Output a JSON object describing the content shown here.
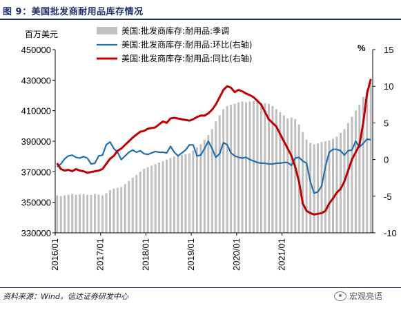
{
  "figure": {
    "title": "图 9：美国批发商耐用品库存情况",
    "source": "资料来源：Wind，信达证券研发中心",
    "watermark": "宏观亮语"
  },
  "chart_data": {
    "type": "bar+line",
    "left_unit": "百万美元",
    "right_unit": "%",
    "left_ylim": [
      330000,
      450000
    ],
    "left_ticks": [
      330000,
      350000,
      370000,
      390000,
      410000,
      430000,
      450000
    ],
    "right_ylim": [
      -10,
      15
    ],
    "right_ticks": [
      -10,
      -5,
      0,
      5,
      10,
      15
    ],
    "x_ticks": [
      "2016/01",
      "2017/01",
      "2018/01",
      "2019/01",
      "2020/01",
      "2021/01"
    ],
    "legend": [
      {
        "name": "美国:批发商库存:耐用品:季调",
        "color": "#bfbfbf",
        "kind": "bar"
      },
      {
        "name": "美国:批发商库存:耐用品:环比(右轴)",
        "color": "#1f6fb0",
        "kind": "line"
      },
      {
        "name": "美国:批发商库存:耐用品:同比(右轴)",
        "color": "#c00000",
        "kind": "line"
      }
    ],
    "series": [
      {
        "name": "美国:批发商库存:耐用品:季调",
        "axis": "left",
        "values": [
          354500,
          354000,
          354500,
          355000,
          355500,
          355000,
          355200,
          355500,
          355000,
          354800,
          355500,
          355000,
          354500,
          356000,
          358000,
          359000,
          359500,
          360000,
          362000,
          364000,
          366000,
          368000,
          370000,
          372000,
          373000,
          374000,
          375000,
          376000,
          377000,
          378000,
          379000,
          380000,
          380500,
          381000,
          381500,
          382000,
          384000,
          386000,
          388000,
          391000,
          394000,
          398000,
          403000,
          407000,
          411000,
          413000,
          414000,
          414500,
          415500,
          416000,
          415500,
          416000,
          416500,
          416000,
          415000,
          415000,
          414500,
          413000,
          411000,
          409000,
          407000,
          405000,
          405500,
          404500,
          401000,
          396000,
          391000,
          389000,
          388000,
          388500,
          389500,
          390000,
          390500,
          391500,
          393000,
          395500,
          398000,
          402000,
          406000,
          410000,
          414000,
          419000,
          424000,
          428000
        ]
      },
      {
        "name": "美国:批发商库存:耐用品:环比(右轴)",
        "axis": "right",
        "values": [
          -1.0,
          -0.6,
          0.1,
          0.5,
          0.6,
          0.3,
          0.2,
          0.4,
          0.2,
          -0.6,
          -0.5,
          0.5,
          0.6,
          2.0,
          2.4,
          1.5,
          1.0,
          0.0,
          0.5,
          1.0,
          1.3,
          1.0,
          1.2,
          0.8,
          0.7,
          0.9,
          1.1,
          1.0,
          1.0,
          0.9,
          1.8,
          1.0,
          0.5,
          0.9,
          1.3,
          2.0,
          2.0,
          0.5,
          0.6,
          1.5,
          2.5,
          1.5,
          0.3,
          0.8,
          2.3,
          2.0,
          0.9,
          0.5,
          0.3,
          0.2,
          0.3,
          0.0,
          -0.2,
          -0.4,
          -0.5,
          -0.5,
          -0.6,
          -0.6,
          -0.5,
          -0.5,
          -0.4,
          -0.4,
          -0.8,
          0.2,
          0.3,
          -0.2,
          -0.5,
          -3.0,
          -4.6,
          -4.4,
          -3.6,
          -1.0,
          1.0,
          1.4,
          1.4,
          1.2,
          0.6,
          1.2,
          1.3,
          2.5,
          1.7,
          2.2,
          2.8,
          2.7
        ]
      },
      {
        "name": "美国:批发商库存:耐用品:同比(右轴)",
        "axis": "right",
        "values": [
          -0.5,
          -1.3,
          -1.5,
          -1.4,
          -1.6,
          -1.3,
          -1.5,
          -1.6,
          -1.8,
          -1.7,
          -1.6,
          -1.5,
          -1.3,
          -0.6,
          0.1,
          0.5,
          1.2,
          1.5,
          2.0,
          2.5,
          3.0,
          3.4,
          3.8,
          3.9,
          4.2,
          4.3,
          4.4,
          4.8,
          5.2,
          5.0,
          5.6,
          5.7,
          5.6,
          5.5,
          5.4,
          5.3,
          5.5,
          5.8,
          6.0,
          6.0,
          6.3,
          6.8,
          7.5,
          8.5,
          9.5,
          10.0,
          9.8,
          9.2,
          9.5,
          9.3,
          9.0,
          8.8,
          8.5,
          8.0,
          7.5,
          6.5,
          5.5,
          5.0,
          4.5,
          3.5,
          2.5,
          1.5,
          0.5,
          -1.0,
          -3.0,
          -6.0,
          -7.0,
          -7.3,
          -7.5,
          -7.4,
          -7.3,
          -7.0,
          -6.0,
          -5.3,
          -4.5,
          -4.0,
          -3.0,
          -1.5,
          0.0,
          1.0,
          2.0,
          5.0,
          9.0,
          11.0
        ]
      }
    ]
  }
}
